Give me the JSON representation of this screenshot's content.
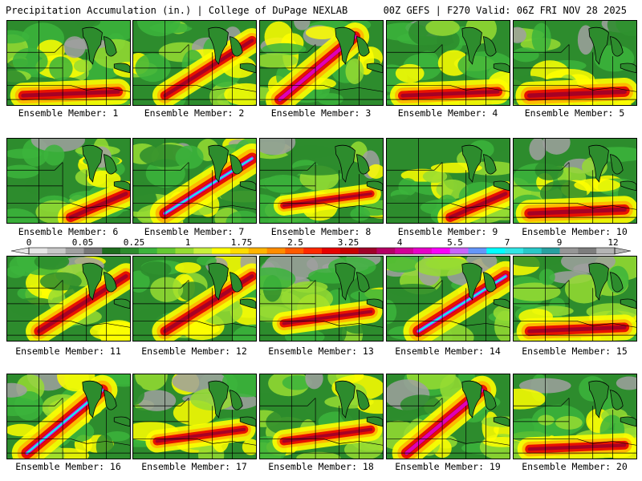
{
  "header": {
    "left": "Precipitation Accumulation (in.) | College of DuPage NEXLAB",
    "right": "00Z GEFS | F270 Valid: 06Z FRI NOV 28 2025"
  },
  "label_prefix": "Ensemble Member: ",
  "members": [
    {
      "label": "Ensemble Member: 1",
      "intensity": 0.62,
      "pattern": "south-max"
    },
    {
      "label": "Ensemble Member: 2",
      "intensity": 0.58,
      "pattern": "ne-band"
    },
    {
      "label": "Ensemble Member: 3",
      "intensity": 0.72,
      "pattern": "sw-max"
    },
    {
      "label": "Ensemble Member: 4",
      "intensity": 0.6,
      "pattern": "south-max"
    },
    {
      "label": "Ensemble Member: 5",
      "intensity": 0.7,
      "pattern": "south-max"
    },
    {
      "label": "Ensemble Member: 6",
      "intensity": 0.62,
      "pattern": "se-max"
    },
    {
      "label": "Ensemble Member: 7",
      "intensity": 0.78,
      "pattern": "ne-band"
    },
    {
      "label": "Ensemble Member: 8",
      "intensity": 0.4,
      "pattern": "flat"
    },
    {
      "label": "Ensemble Member: 9",
      "intensity": 0.6,
      "pattern": "se-max"
    },
    {
      "label": "Ensemble Member: 10",
      "intensity": 0.68,
      "pattern": "south-max"
    },
    {
      "label": "Ensemble Member: 11",
      "intensity": 0.64,
      "pattern": "ne-band"
    },
    {
      "label": "Ensemble Member: 12",
      "intensity": 0.62,
      "pattern": "ne-band"
    },
    {
      "label": "Ensemble Member: 13",
      "intensity": 0.5,
      "pattern": "flat"
    },
    {
      "label": "Ensemble Member: 14",
      "intensity": 0.8,
      "pattern": "ne-band"
    },
    {
      "label": "Ensemble Member: 15",
      "intensity": 0.62,
      "pattern": "south-max"
    },
    {
      "label": "Ensemble Member: 16",
      "intensity": 0.8,
      "pattern": "sw-max"
    },
    {
      "label": "Ensemble Member: 17",
      "intensity": 0.5,
      "pattern": "flat"
    },
    {
      "label": "Ensemble Member: 18",
      "intensity": 0.5,
      "pattern": "flat"
    },
    {
      "label": "Ensemble Member: 19",
      "intensity": 0.74,
      "pattern": "sw-max"
    },
    {
      "label": "Ensemble Member: 20",
      "intensity": 0.55,
      "pattern": "south-max"
    }
  ],
  "colorbar": {
    "tick_labels": [
      "0",
      "0.05",
      "0.25",
      "1",
      "1.75",
      "2.5",
      "3.25",
      "4",
      "5.5",
      "7",
      "9",
      "12"
    ],
    "colors": [
      "#e6e6e6",
      "#c8c8c8",
      "#a0a0a0",
      "#787878",
      "#1e6e1e",
      "#2d8c2d",
      "#3cb43c",
      "#64c832",
      "#96dc32",
      "#c8f03c",
      "#ffff00",
      "#ffdc00",
      "#ffb400",
      "#ff8c00",
      "#ff5a00",
      "#ff2800",
      "#e60000",
      "#c80000",
      "#a00028",
      "#b40064",
      "#d20096",
      "#e600c8",
      "#fa00fa",
      "#c864fa",
      "#6496fa",
      "#00ffff",
      "#32e6e6",
      "#28c8c8",
      "#28a0a0",
      "#969696",
      "#7d7d7d",
      "#b4b4b4"
    ]
  },
  "map_colors": {
    "dry": "#a0a0a0",
    "light_green": "#3cb43c",
    "green": "#2d8c2d",
    "yellow_green": "#96dc32",
    "yellow": "#ffff00",
    "orange": "#ffb400",
    "red": "#e60000",
    "dark_red": "#a00028",
    "magenta": "#e600c8",
    "cyan": "#00ffff"
  }
}
